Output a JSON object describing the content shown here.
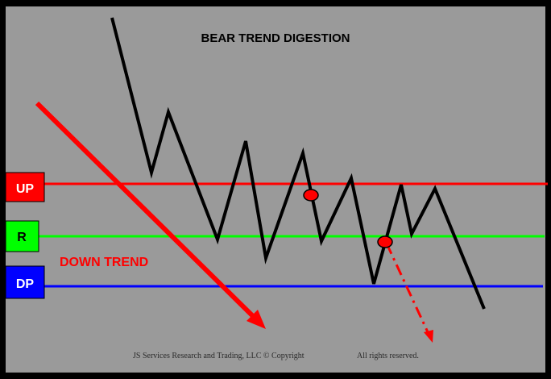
{
  "title": "BEAR TREND DIGESTION",
  "trend_label": "DOWN TREND",
  "levels": {
    "up": {
      "label": "UP",
      "color": "#ff0000"
    },
    "r": {
      "label": "R",
      "color": "#00ff00"
    },
    "dp": {
      "label": "DP",
      "color": "#0000ff"
    }
  },
  "footer": {
    "left": "JS Services Research and Trading, LLC © Copyright",
    "right": "All rights reserved."
  },
  "colors": {
    "background": "#9a9a9a",
    "frame": "#000000",
    "price_line": "#000000",
    "trend_arrow": "#ff0000",
    "marker": "#ff0000"
  }
}
